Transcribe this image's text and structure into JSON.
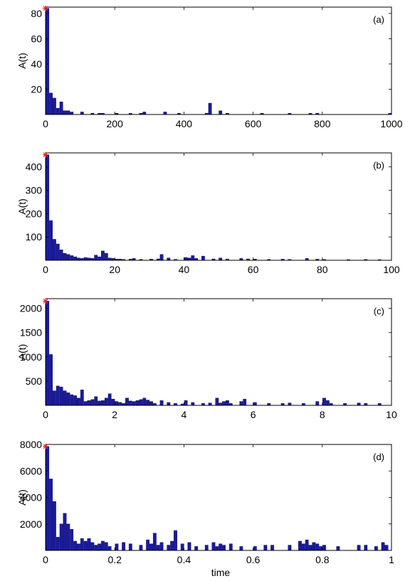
{
  "figure": {
    "xlabel": "time"
  },
  "chart_data": [
    {
      "type": "bar",
      "panel_label": "(a)",
      "ylabel": "A(t)",
      "xlim": [
        0,
        1000
      ],
      "ylim": [
        0,
        85
      ],
      "xticks": [
        0,
        200,
        400,
        600,
        800,
        1000
      ],
      "yticks": [
        20,
        40,
        60,
        80
      ],
      "bar_width": 10,
      "star": {
        "x": 0,
        "y": 84
      },
      "x": [
        0,
        10,
        20,
        30,
        40,
        50,
        60,
        70,
        100,
        130,
        150,
        160,
        200,
        240,
        270,
        280,
        340,
        380,
        460,
        470,
        500,
        520,
        620,
        700,
        760,
        780,
        990
      ],
      "values": [
        84,
        17,
        13,
        5,
        10,
        3,
        3,
        2,
        2,
        1,
        1,
        1,
        1,
        1,
        1,
        2,
        2,
        1,
        1,
        9,
        3,
        1,
        1,
        1,
        1,
        1,
        1
      ]
    },
    {
      "type": "bar",
      "panel_label": "(b)",
      "ylabel": "A(t)",
      "xlim": [
        0,
        100
      ],
      "ylim": [
        0,
        460
      ],
      "xticks": [
        0,
        20,
        40,
        60,
        80,
        100
      ],
      "yticks": [
        100,
        200,
        300,
        400
      ],
      "bar_width": 1,
      "star": {
        "x": 0,
        "y": 452
      },
      "x": [
        0,
        1,
        2,
        3,
        4,
        5,
        6,
        7,
        8,
        9,
        10,
        11,
        12,
        13,
        14,
        15,
        16,
        17,
        18,
        19,
        20,
        21,
        22,
        24,
        25,
        27,
        30,
        32,
        33,
        35,
        37,
        40,
        41,
        42,
        43,
        45,
        48,
        50,
        52,
        56,
        58,
        60,
        64,
        68,
        70,
        75,
        78,
        80,
        87,
        92,
        96
      ],
      "values": [
        452,
        170,
        90,
        70,
        45,
        30,
        25,
        20,
        15,
        10,
        8,
        12,
        10,
        8,
        22,
        15,
        40,
        30,
        10,
        8,
        5,
        5,
        4,
        5,
        8,
        4,
        5,
        6,
        25,
        10,
        4,
        12,
        10,
        20,
        8,
        18,
        6,
        10,
        5,
        8,
        6,
        5,
        4,
        5,
        4,
        8,
        5,
        4,
        3,
        4,
        3
      ]
    },
    {
      "type": "bar",
      "panel_label": "(c)",
      "ylabel": "A(t)",
      "xlim": [
        0,
        10
      ],
      "ylim": [
        0,
        2200
      ],
      "xticks": [
        0,
        2,
        4,
        6,
        8,
        10
      ],
      "yticks": [
        500,
        1000,
        1500,
        2000
      ],
      "bar_width": 0.1,
      "star": {
        "x": 0,
        "y": 2150
      },
      "x": [
        0.0,
        0.1,
        0.2,
        0.3,
        0.4,
        0.5,
        0.6,
        0.7,
        0.8,
        0.9,
        1.0,
        1.1,
        1.2,
        1.3,
        1.4,
        1.5,
        1.6,
        1.7,
        1.8,
        1.9,
        2.0,
        2.1,
        2.2,
        2.3,
        2.4,
        2.5,
        2.6,
        2.7,
        2.8,
        2.9,
        3.0,
        3.1,
        3.3,
        3.5,
        3.7,
        3.9,
        4.0,
        4.2,
        4.5,
        4.7,
        4.9,
        5.0,
        5.1,
        5.2,
        5.3,
        5.6,
        5.7,
        6.0,
        6.4,
        6.8,
        7.0,
        7.4,
        7.8,
        8.0,
        8.1,
        8.2,
        8.6,
        9.0,
        9.2,
        9.6
      ],
      "values": [
        2150,
        1050,
        300,
        400,
        380,
        300,
        260,
        220,
        200,
        150,
        320,
        80,
        100,
        120,
        180,
        90,
        100,
        150,
        240,
        130,
        80,
        60,
        40,
        150,
        90,
        80,
        100,
        120,
        150,
        110,
        80,
        40,
        100,
        60,
        40,
        30,
        100,
        60,
        40,
        50,
        150,
        50,
        80,
        100,
        40,
        80,
        130,
        60,
        40,
        40,
        50,
        40,
        80,
        150,
        100,
        40,
        40,
        50,
        40,
        40
      ]
    },
    {
      "type": "bar",
      "panel_label": "(d)",
      "ylabel": "A(t)",
      "xlim": [
        0,
        1
      ],
      "ylim": [
        0,
        8000
      ],
      "xticks": [
        0,
        0.2,
        0.4,
        0.6,
        0.8,
        1
      ],
      "yticks": [
        2000,
        4000,
        6000,
        8000
      ],
      "bar_width": 0.01,
      "star": {
        "x": 0,
        "y": 7850
      },
      "x": [
        0.0,
        0.01,
        0.02,
        0.03,
        0.04,
        0.05,
        0.06,
        0.07,
        0.08,
        0.09,
        0.1,
        0.11,
        0.12,
        0.13,
        0.14,
        0.15,
        0.16,
        0.17,
        0.18,
        0.2,
        0.22,
        0.24,
        0.27,
        0.29,
        0.3,
        0.31,
        0.32,
        0.33,
        0.35,
        0.36,
        0.37,
        0.39,
        0.41,
        0.43,
        0.46,
        0.48,
        0.49,
        0.5,
        0.51,
        0.53,
        0.56,
        0.6,
        0.63,
        0.65,
        0.7,
        0.73,
        0.74,
        0.75,
        0.76,
        0.77,
        0.78,
        0.79,
        0.8,
        0.84,
        0.9,
        0.92,
        0.95,
        0.97,
        0.98
      ],
      "values": [
        7850,
        5400,
        3700,
        1000,
        2000,
        2800,
        2000,
        1600,
        700,
        500,
        900,
        700,
        900,
        600,
        400,
        500,
        700,
        600,
        300,
        500,
        600,
        500,
        400,
        800,
        500,
        1300,
        400,
        600,
        400,
        700,
        1500,
        500,
        600,
        300,
        400,
        600,
        300,
        500,
        400,
        500,
        300,
        300,
        400,
        400,
        400,
        700,
        500,
        800,
        400,
        600,
        500,
        300,
        400,
        300,
        400,
        400,
        300,
        600,
        400
      ]
    }
  ]
}
